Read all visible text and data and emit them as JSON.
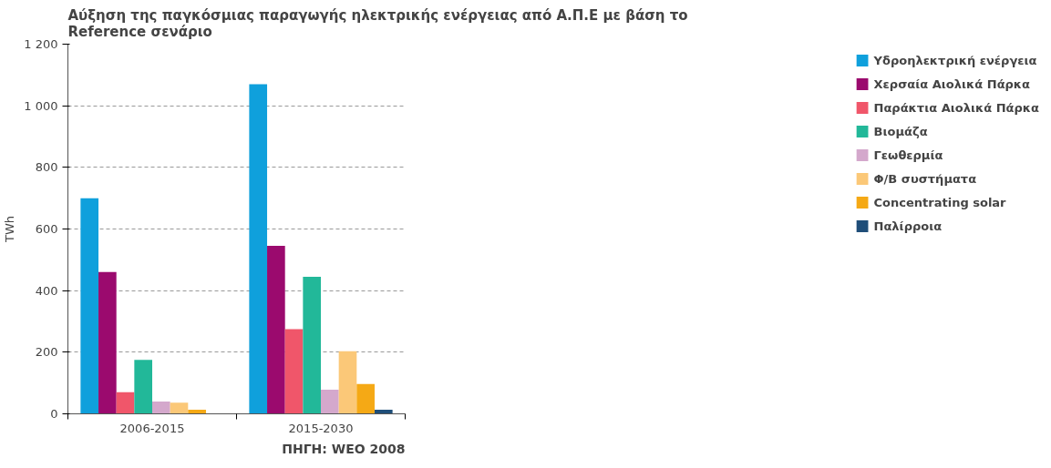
{
  "chart_data": {
    "type": "bar",
    "title": "Αύξηση της παγκόσμιας παραγωγής ηλεκτρικής ενέργειας από Α.Π.Ε με βάση το Reference σενάριο",
    "ylabel": "TWh",
    "categories": [
      "2006-2015",
      "2015-2030"
    ],
    "series": [
      {
        "name": "Υδροηλεκτρική ενέργεια",
        "color": "#0fa0dc",
        "values": [
          700,
          1070
        ]
      },
      {
        "name": "Χερσαία Αιολικά Πάρκα",
        "color": "#9b0a6e",
        "values": [
          460,
          545
        ]
      },
      {
        "name": "Παράκτια Αιολικά Πάρκα",
        "color": "#f0566a",
        "values": [
          70,
          275
        ]
      },
      {
        "name": "Βιομάζα",
        "color": "#22b899",
        "values": [
          175,
          445
        ]
      },
      {
        "name": "Γεωθερμία",
        "color": "#d4a8cc",
        "values": [
          40,
          78
        ]
      },
      {
        "name": "Φ/Β συστήματα",
        "color": "#fbc878",
        "values": [
          36,
          203
        ]
      },
      {
        "name": "Concentrating solar",
        "color": "#f5a915",
        "values": [
          13,
          97
        ]
      },
      {
        "name": "Παλίρροια",
        "color": "#1f4e79",
        "values": [
          0,
          13
        ]
      }
    ],
    "ylim": [
      0,
      1200
    ],
    "yticks": [
      0,
      200,
      400,
      600,
      800,
      {
        "value": 1000,
        "label": "1 000"
      },
      {
        "value": 1200,
        "label": "1 200"
      }
    ],
    "grid": "y",
    "legend": "right",
    "annotations": [
      "ΠΗΓΗ: WEO 2008"
    ]
  }
}
